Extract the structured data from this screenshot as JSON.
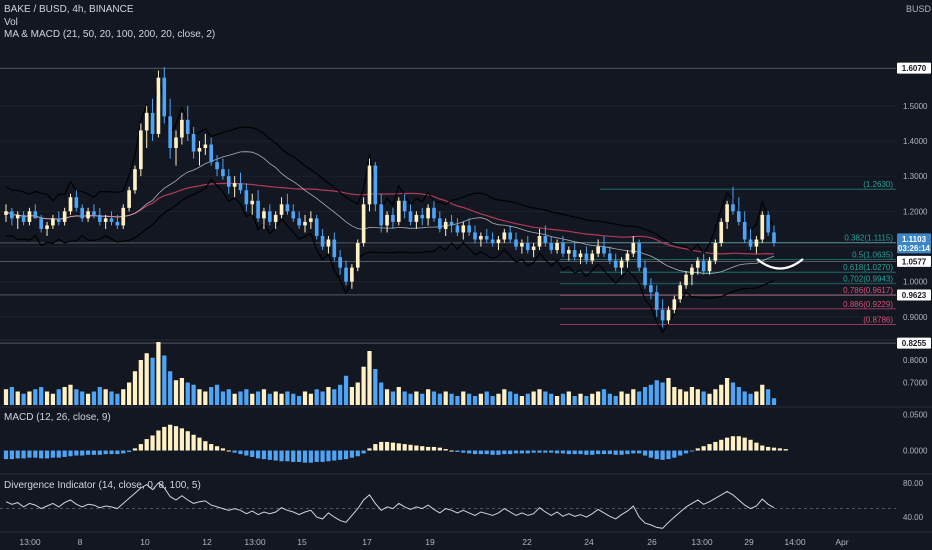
{
  "header": {
    "symbol_line": "BAKE / BUSD, 4h, BINANCE",
    "vol_label": "Vol",
    "ma_macd_label": "MA & MACD (21, 50, 20, 100, 200, 20, close, 2)",
    "currency": "BUSD",
    "macd_label": "MACD (12, 26, close, 9)",
    "div_label": "Divergence Indicator (14, close, 0, 8, 100, 5)"
  },
  "colors": {
    "background": "#131722",
    "up_candle": "#fff1c4",
    "down_candle": "#4ea4f5",
    "ma_white": "#d1d4dc",
    "ma_red": "#b03a58",
    "ma_black": "#000000",
    "fib_teal": "#26a69a",
    "fib_red": "#e0507a"
  },
  "chart_data": {
    "type": "candlestick",
    "price_axis": {
      "range": [
        0.84,
        1.67
      ],
      "ticks": [
        "1.5000",
        "1.4000",
        "1.3000",
        "1.2000",
        "1.1000",
        "1.0000",
        "0.9000"
      ],
      "tick_values": [
        1.5,
        1.4,
        1.3,
        1.2,
        1.1,
        1.0,
        0.9
      ]
    },
    "x_axis": {
      "labels": [
        "13:00",
        "8",
        "10",
        "12",
        "13:00",
        "15",
        "17",
        "19",
        "22",
        "24",
        "26",
        "13:00",
        "29",
        "14:00",
        "Apr"
      ]
    },
    "price_badges": [
      {
        "text": "1.6070",
        "value": 1.607
      },
      {
        "text": "1.1103",
        "value": 1.1103
      },
      {
        "text": "03:26:14",
        "value": 1.1103
      },
      {
        "text": "1.0577",
        "value": 1.0577
      },
      {
        "text": "0.9623",
        "value": 0.9623
      },
      {
        "text": "0.8255",
        "value": 0.8255
      }
    ],
    "fib_levels": [
      {
        "label": "(1.2630)",
        "value": 1.263
      },
      {
        "label": "0.382(1.1115)",
        "value": 1.1115
      },
      {
        "label": "0.5(1.0635)",
        "value": 1.0635
      },
      {
        "label": "0.618(1.0270)",
        "value": 1.027
      },
      {
        "label": "0.702(0.9943)",
        "value": 0.9943
      },
      {
        "label": "0.786(0.9617)",
        "value": 0.9617
      },
      {
        "label": "0.886(0.9229)",
        "value": 0.9229
      },
      {
        "label": "(0.8786)",
        "value": 0.8786
      }
    ],
    "candles": [
      [
        1.19,
        1.22,
        1.17,
        1.2
      ],
      [
        1.2,
        1.21,
        1.16,
        1.18
      ],
      [
        1.18,
        1.2,
        1.15,
        1.19
      ],
      [
        1.19,
        1.2,
        1.16,
        1.17
      ],
      [
        1.17,
        1.21,
        1.16,
        1.2
      ],
      [
        1.2,
        1.22,
        1.18,
        1.18
      ],
      [
        1.18,
        1.19,
        1.14,
        1.15
      ],
      [
        1.15,
        1.17,
        1.13,
        1.16
      ],
      [
        1.16,
        1.19,
        1.15,
        1.18
      ],
      [
        1.18,
        1.2,
        1.16,
        1.17
      ],
      [
        1.17,
        1.21,
        1.16,
        1.2
      ],
      [
        1.2,
        1.25,
        1.19,
        1.24
      ],
      [
        1.24,
        1.26,
        1.2,
        1.21
      ],
      [
        1.21,
        1.22,
        1.17,
        1.18
      ],
      [
        1.18,
        1.21,
        1.17,
        1.2
      ],
      [
        1.2,
        1.22,
        1.18,
        1.19
      ],
      [
        1.19,
        1.21,
        1.16,
        1.17
      ],
      [
        1.17,
        1.19,
        1.15,
        1.18
      ],
      [
        1.18,
        1.2,
        1.16,
        1.17
      ],
      [
        1.17,
        1.19,
        1.15,
        1.16
      ],
      [
        1.16,
        1.22,
        1.15,
        1.21
      ],
      [
        1.21,
        1.27,
        1.2,
        1.26
      ],
      [
        1.26,
        1.33,
        1.25,
        1.32
      ],
      [
        1.32,
        1.45,
        1.3,
        1.43
      ],
      [
        1.43,
        1.5,
        1.38,
        1.48
      ],
      [
        1.48,
        1.52,
        1.4,
        1.42
      ],
      [
        1.42,
        1.6,
        1.41,
        1.58
      ],
      [
        1.58,
        1.61,
        1.45,
        1.47
      ],
      [
        1.47,
        1.52,
        1.35,
        1.38
      ],
      [
        1.38,
        1.43,
        1.33,
        1.41
      ],
      [
        1.41,
        1.48,
        1.39,
        1.46
      ],
      [
        1.46,
        1.5,
        1.4,
        1.42
      ],
      [
        1.42,
        1.44,
        1.35,
        1.37
      ],
      [
        1.37,
        1.4,
        1.33,
        1.38
      ],
      [
        1.38,
        1.42,
        1.36,
        1.39
      ],
      [
        1.39,
        1.41,
        1.33,
        1.34
      ],
      [
        1.34,
        1.36,
        1.3,
        1.32
      ],
      [
        1.32,
        1.35,
        1.29,
        1.3
      ],
      [
        1.3,
        1.32,
        1.25,
        1.27
      ],
      [
        1.27,
        1.3,
        1.24,
        1.28
      ],
      [
        1.28,
        1.31,
        1.25,
        1.26
      ],
      [
        1.26,
        1.28,
        1.2,
        1.22
      ],
      [
        1.22,
        1.25,
        1.19,
        1.23
      ],
      [
        1.23,
        1.26,
        1.17,
        1.18
      ],
      [
        1.18,
        1.21,
        1.15,
        1.2
      ],
      [
        1.2,
        1.22,
        1.16,
        1.17
      ],
      [
        1.17,
        1.2,
        1.15,
        1.19
      ],
      [
        1.19,
        1.24,
        1.18,
        1.22
      ],
      [
        1.22,
        1.25,
        1.19,
        1.2
      ],
      [
        1.2,
        1.22,
        1.17,
        1.18
      ],
      [
        1.18,
        1.2,
        1.15,
        1.16
      ],
      [
        1.16,
        1.19,
        1.14,
        1.17
      ],
      [
        1.17,
        1.2,
        1.15,
        1.18
      ],
      [
        1.18,
        1.19,
        1.12,
        1.13
      ],
      [
        1.13,
        1.15,
        1.09,
        1.1
      ],
      [
        1.1,
        1.13,
        1.08,
        1.12
      ],
      [
        1.12,
        1.14,
        1.06,
        1.07
      ],
      [
        1.07,
        1.09,
        1.02,
        1.04
      ],
      [
        1.04,
        1.06,
        0.99,
        1.0
      ],
      [
        1.0,
        1.05,
        0.98,
        1.04
      ],
      [
        1.04,
        1.12,
        1.03,
        1.11
      ],
      [
        1.11,
        1.24,
        1.1,
        1.22
      ],
      [
        1.22,
        1.35,
        1.2,
        1.33
      ],
      [
        1.33,
        1.34,
        1.2,
        1.22
      ],
      [
        1.22,
        1.25,
        1.14,
        1.16
      ],
      [
        1.16,
        1.2,
        1.14,
        1.19
      ],
      [
        1.19,
        1.21,
        1.15,
        1.17
      ],
      [
        1.17,
        1.24,
        1.16,
        1.23
      ],
      [
        1.23,
        1.25,
        1.18,
        1.2
      ],
      [
        1.2,
        1.22,
        1.16,
        1.17
      ],
      [
        1.17,
        1.2,
        1.15,
        1.19
      ],
      [
        1.19,
        1.21,
        1.16,
        1.18
      ],
      [
        1.18,
        1.22,
        1.16,
        1.21
      ],
      [
        1.21,
        1.23,
        1.17,
        1.18
      ],
      [
        1.18,
        1.2,
        1.14,
        1.15
      ],
      [
        1.15,
        1.18,
        1.13,
        1.17
      ],
      [
        1.17,
        1.19,
        1.14,
        1.16
      ],
      [
        1.16,
        1.18,
        1.13,
        1.14
      ],
      [
        1.14,
        1.17,
        1.12,
        1.16
      ],
      [
        1.16,
        1.18,
        1.13,
        1.14
      ],
      [
        1.14,
        1.16,
        1.11,
        1.12
      ],
      [
        1.12,
        1.14,
        1.1,
        1.13
      ],
      [
        1.13,
        1.15,
        1.11,
        1.12
      ],
      [
        1.12,
        1.14,
        1.1,
        1.11
      ],
      [
        1.11,
        1.13,
        1.09,
        1.12
      ],
      [
        1.12,
        1.15,
        1.11,
        1.14
      ],
      [
        1.14,
        1.16,
        1.11,
        1.12
      ],
      [
        1.12,
        1.14,
        1.09,
        1.1
      ],
      [
        1.1,
        1.12,
        1.08,
        1.11
      ],
      [
        1.11,
        1.13,
        1.08,
        1.09
      ],
      [
        1.09,
        1.11,
        1.07,
        1.1
      ],
      [
        1.1,
        1.15,
        1.09,
        1.13
      ],
      [
        1.13,
        1.16,
        1.1,
        1.11
      ],
      [
        1.11,
        1.13,
        1.08,
        1.09
      ],
      [
        1.09,
        1.12,
        1.08,
        1.11
      ],
      [
        1.11,
        1.13,
        1.07,
        1.08
      ],
      [
        1.08,
        1.1,
        1.06,
        1.09
      ],
      [
        1.09,
        1.11,
        1.06,
        1.07
      ],
      [
        1.07,
        1.09,
        1.05,
        1.08
      ],
      [
        1.08,
        1.1,
        1.05,
        1.06
      ],
      [
        1.06,
        1.09,
        1.05,
        1.08
      ],
      [
        1.08,
        1.12,
        1.07,
        1.1
      ],
      [
        1.1,
        1.13,
        1.07,
        1.08
      ],
      [
        1.08,
        1.1,
        1.05,
        1.06
      ],
      [
        1.06,
        1.08,
        1.03,
        1.04
      ],
      [
        1.04,
        1.07,
        1.02,
        1.06
      ],
      [
        1.06,
        1.09,
        1.04,
        1.08
      ],
      [
        1.08,
        1.13,
        1.07,
        1.11
      ],
      [
        1.11,
        1.12,
        1.03,
        1.04
      ],
      [
        1.04,
        1.06,
        0.98,
        0.99
      ],
      [
        0.99,
        1.01,
        0.95,
        0.97
      ],
      [
        0.97,
        0.99,
        0.9,
        0.92
      ],
      [
        0.92,
        0.95,
        0.87,
        0.89
      ],
      [
        0.89,
        0.93,
        0.88,
        0.92
      ],
      [
        0.92,
        0.96,
        0.91,
        0.95
      ],
      [
        0.95,
        1.0,
        0.94,
        0.99
      ],
      [
        0.99,
        1.03,
        0.98,
        1.02
      ],
      [
        1.02,
        1.05,
        0.99,
        1.04
      ],
      [
        1.04,
        1.07,
        1.02,
        1.06
      ],
      [
        1.06,
        1.08,
        1.02,
        1.03
      ],
      [
        1.03,
        1.07,
        1.02,
        1.06
      ],
      [
        1.06,
        1.12,
        1.05,
        1.11
      ],
      [
        1.11,
        1.18,
        1.1,
        1.17
      ],
      [
        1.17,
        1.23,
        1.15,
        1.22
      ],
      [
        1.22,
        1.27,
        1.19,
        1.2
      ],
      [
        1.2,
        1.24,
        1.16,
        1.17
      ],
      [
        1.17,
        1.2,
        1.11,
        1.12
      ],
      [
        1.12,
        1.15,
        1.09,
        1.1
      ],
      [
        1.1,
        1.13,
        1.08,
        1.12
      ],
      [
        1.12,
        1.2,
        1.11,
        1.19
      ],
      [
        1.19,
        1.2,
        1.13,
        1.14
      ],
      [
        1.14,
        1.16,
        1.1,
        1.11
      ]
    ],
    "volume_axis": {
      "ticks": [
        "0.8000",
        "0.7000"
      ],
      "tick_values": [
        0.8,
        0.7
      ],
      "range": [
        0.6,
        0.88
      ]
    },
    "volume": [
      0.67,
      0.68,
      0.66,
      0.65,
      0.66,
      0.67,
      0.68,
      0.66,
      0.65,
      0.67,
      0.68,
      0.69,
      0.67,
      0.66,
      0.65,
      0.66,
      0.68,
      0.67,
      0.66,
      0.65,
      0.67,
      0.7,
      0.75,
      0.8,
      0.83,
      0.81,
      0.88,
      0.82,
      0.75,
      0.71,
      0.72,
      0.7,
      0.69,
      0.67,
      0.66,
      0.68,
      0.69,
      0.66,
      0.67,
      0.65,
      0.66,
      0.67,
      0.65,
      0.66,
      0.67,
      0.65,
      0.66,
      0.65,
      0.66,
      0.65,
      0.64,
      0.66,
      0.65,
      0.67,
      0.66,
      0.68,
      0.67,
      0.69,
      0.73,
      0.68,
      0.7,
      0.77,
      0.84,
      0.76,
      0.7,
      0.67,
      0.66,
      0.68,
      0.66,
      0.65,
      0.66,
      0.65,
      0.67,
      0.66,
      0.65,
      0.66,
      0.65,
      0.64,
      0.66,
      0.65,
      0.64,
      0.65,
      0.66,
      0.64,
      0.65,
      0.67,
      0.66,
      0.65,
      0.64,
      0.65,
      0.66,
      0.67,
      0.66,
      0.65,
      0.64,
      0.65,
      0.66,
      0.64,
      0.65,
      0.64,
      0.65,
      0.66,
      0.67,
      0.65,
      0.64,
      0.66,
      0.65,
      0.67,
      0.66,
      0.68,
      0.69,
      0.71,
      0.7,
      0.72,
      0.68,
      0.67,
      0.66,
      0.68,
      0.67,
      0.66,
      0.65,
      0.67,
      0.69,
      0.72,
      0.7,
      0.68,
      0.66,
      0.65,
      0.66,
      0.69,
      0.67,
      0.63
    ],
    "macd_axis": {
      "ticks": [
        "0.0500",
        "0.0000"
      ],
      "tick_values": [
        0.05,
        0.0
      ],
      "range": [
        -0.03,
        0.058
      ]
    },
    "macd_hist": [
      -0.012,
      -0.012,
      -0.011,
      -0.011,
      -0.01,
      -0.01,
      -0.011,
      -0.011,
      -0.01,
      -0.01,
      -0.009,
      -0.008,
      -0.007,
      -0.007,
      -0.006,
      -0.006,
      -0.006,
      -0.005,
      -0.005,
      -0.005,
      -0.004,
      -0.002,
      0.003,
      0.009,
      0.016,
      0.021,
      0.028,
      0.033,
      0.036,
      0.034,
      0.031,
      0.027,
      0.022,
      0.018,
      0.013,
      0.009,
      0.006,
      0.003,
      0.0,
      -0.003,
      -0.005,
      -0.007,
      -0.009,
      -0.011,
      -0.012,
      -0.013,
      -0.014,
      -0.015,
      -0.015,
      -0.016,
      -0.016,
      -0.017,
      -0.017,
      -0.016,
      -0.016,
      -0.015,
      -0.014,
      -0.013,
      -0.012,
      -0.01,
      -0.008,
      -0.004,
      0.003,
      0.009,
      0.012,
      0.012,
      0.011,
      0.01,
      0.009,
      0.008,
      0.007,
      0.006,
      0.005,
      0.005,
      0.004,
      0.002,
      0.0,
      -0.002,
      -0.003,
      -0.004,
      -0.005,
      -0.005,
      -0.005,
      -0.006,
      -0.006,
      -0.005,
      -0.005,
      -0.004,
      -0.004,
      -0.004,
      -0.003,
      -0.003,
      -0.003,
      -0.003,
      -0.004,
      -0.004,
      -0.005,
      -0.005,
      -0.005,
      -0.006,
      -0.006,
      -0.005,
      -0.005,
      -0.005,
      -0.006,
      -0.006,
      -0.005,
      -0.004,
      -0.004,
      -0.007,
      -0.01,
      -0.012,
      -0.013,
      -0.012,
      -0.01,
      -0.007,
      -0.004,
      -0.001,
      0.003,
      0.006,
      0.009,
      0.012,
      0.015,
      0.018,
      0.02,
      0.02,
      0.018,
      0.015,
      0.011,
      0.007,
      0.005,
      0.004,
      0.003,
      0.002
    ],
    "div_axis": {
      "ticks": [
        "80.00",
        "40.00"
      ],
      "tick_values": [
        80,
        40
      ],
      "range": [
        25,
        88
      ]
    },
    "div_line": [
      58,
      55,
      57,
      52,
      56,
      54,
      50,
      53,
      56,
      52,
      57,
      60,
      55,
      52,
      55,
      54,
      51,
      53,
      52,
      50,
      56,
      62,
      68,
      74,
      78,
      72,
      80,
      74,
      64,
      60,
      65,
      60,
      56,
      58,
      59,
      54,
      52,
      50,
      48,
      50,
      48,
      44,
      47,
      43,
      46,
      44,
      46,
      51,
      48,
      46,
      43,
      46,
      48,
      40,
      38,
      45,
      40,
      36,
      34,
      42,
      50,
      60,
      66,
      56,
      48,
      52,
      50,
      56,
      52,
      49,
      52,
      50,
      54,
      49,
      45,
      50,
      48,
      45,
      48,
      45,
      42,
      46,
      44,
      42,
      45,
      50,
      46,
      42,
      45,
      42,
      44,
      51,
      46,
      42,
      46,
      41,
      44,
      41,
      43,
      40,
      44,
      49,
      45,
      41,
      38,
      43,
      47,
      53,
      40,
      33,
      31,
      28,
      27,
      34,
      40,
      46,
      52,
      56,
      60,
      55,
      58,
      62,
      66,
      70,
      66,
      60,
      54,
      50,
      53,
      61,
      55,
      51
    ]
  }
}
